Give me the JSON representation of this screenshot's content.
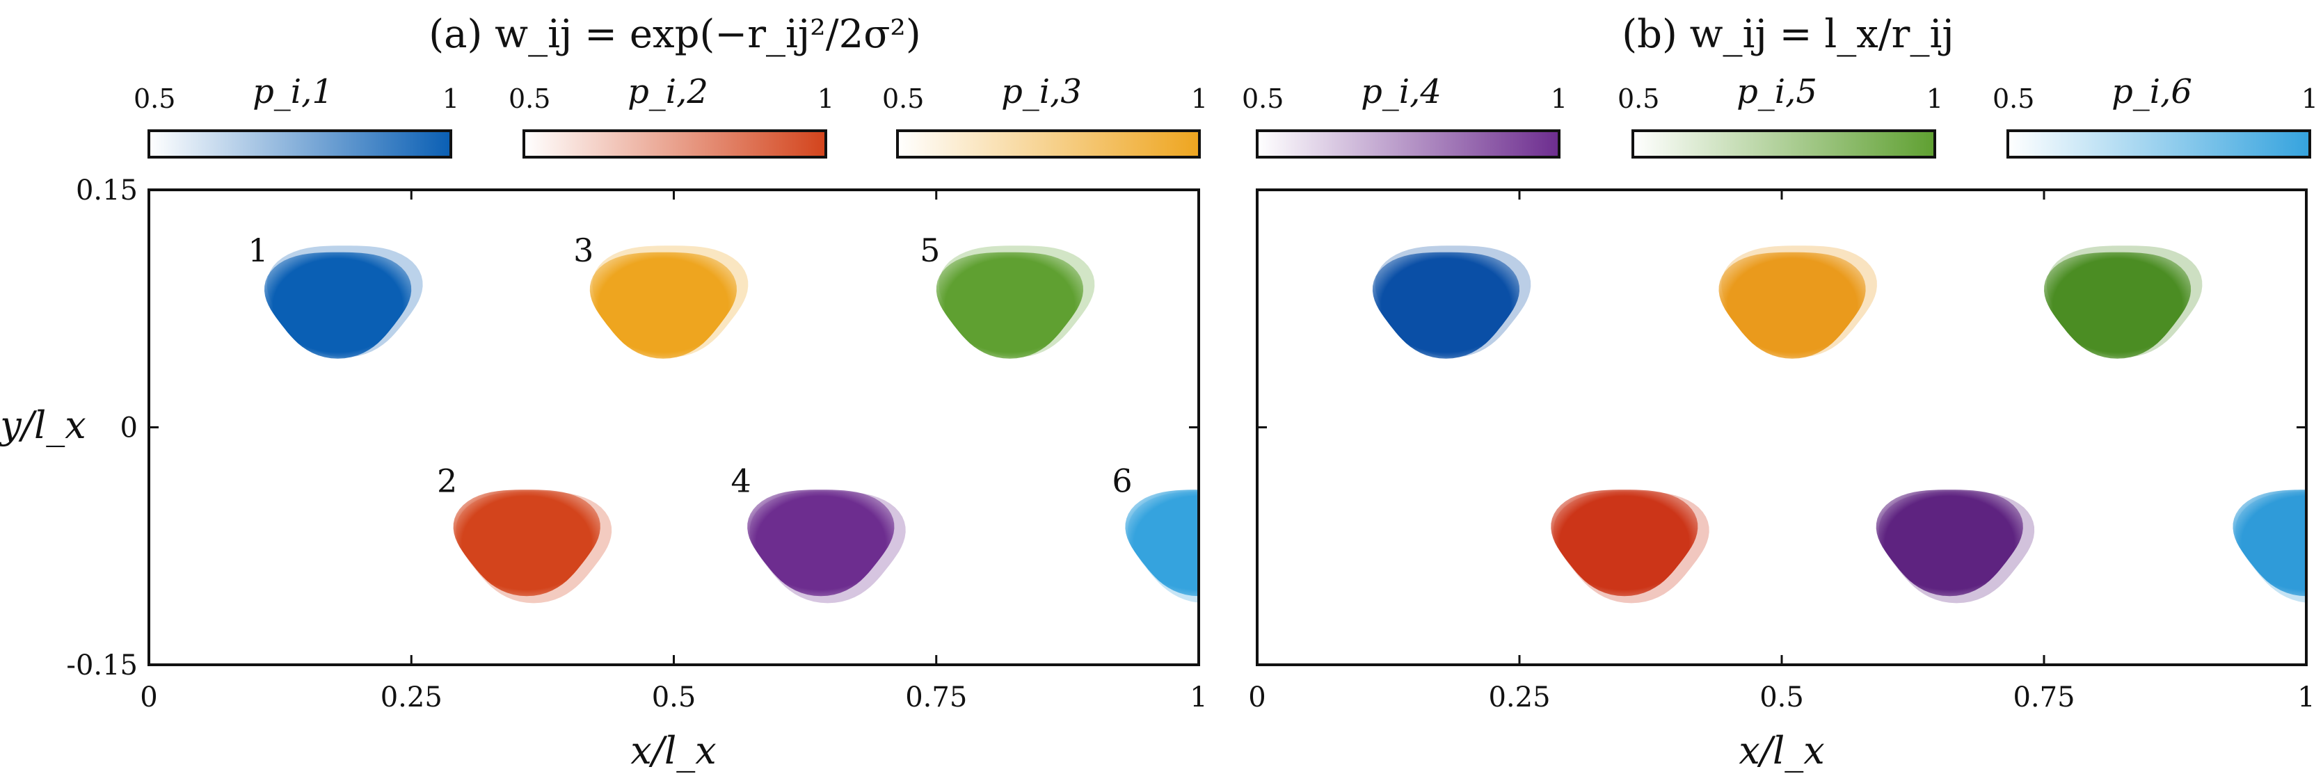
{
  "chart_data": [
    {
      "type": "heatmap",
      "title": "(a) w_ij = exp(−r_ij²/2σ²)",
      "xlabel": "x/l_x",
      "ylabel": "y/l_x",
      "xlim": [
        0,
        1
      ],
      "ylim": [
        -0.15,
        0.15
      ],
      "xticks": [
        "0",
        "0.25",
        "0.5",
        "0.75",
        "1"
      ],
      "yticks": [
        "0.15",
        "0",
        "-0.15"
      ],
      "regions": [
        {
          "id": "1",
          "label": "1",
          "cx": 0.18,
          "cy": 0.08,
          "color": "#0a5fb4"
        },
        {
          "id": "2",
          "label": "2",
          "cx": 0.36,
          "cy": -0.07,
          "color": "#d3441c"
        },
        {
          "id": "3",
          "label": "3",
          "cx": 0.49,
          "cy": 0.08,
          "color": "#eea51f"
        },
        {
          "id": "4",
          "label": "4",
          "cx": 0.64,
          "cy": -0.07,
          "color": "#6d2d8f"
        },
        {
          "id": "5",
          "label": "5",
          "cx": 0.82,
          "cy": 0.08,
          "color": "#5fa031"
        },
        {
          "id": "6",
          "label": "6",
          "cx": 1.0,
          "cy": -0.07,
          "color": "#35a3de"
        }
      ]
    },
    {
      "type": "heatmap",
      "title": "(b) w_ij = l_x/r_ij",
      "xlabel": "x/l_x",
      "xlim": [
        0,
        1
      ],
      "ylim": [
        -0.15,
        0.15
      ],
      "xticks": [
        "0",
        "0.25",
        "0.5",
        "0.75",
        "1"
      ],
      "regions": [
        {
          "id": "1",
          "cx": 0.18,
          "cy": 0.08,
          "color": "#0a4fa6"
        },
        {
          "id": "2",
          "cx": 0.35,
          "cy": -0.07,
          "color": "#cc3518"
        },
        {
          "id": "3",
          "cx": 0.51,
          "cy": 0.08,
          "color": "#ea9a1c"
        },
        {
          "id": "4",
          "cx": 0.66,
          "cy": -0.07,
          "color": "#5e2380"
        },
        {
          "id": "5",
          "cx": 0.82,
          "cy": 0.08,
          "color": "#4b8d23"
        },
        {
          "id": "6",
          "cx": 1.0,
          "cy": -0.07,
          "color": "#2f9bd9"
        }
      ]
    }
  ],
  "colorbars": [
    {
      "label": "p_i,1",
      "min": "0.5",
      "max": "1",
      "color": "#0a5fb4"
    },
    {
      "label": "p_i,2",
      "min": "0.5",
      "max": "1",
      "color": "#d3441c"
    },
    {
      "label": "p_i,3",
      "min": "0.5",
      "max": "1",
      "color": "#eea51f"
    },
    {
      "label": "p_i,4",
      "min": "0.5",
      "max": "1",
      "color": "#6d2d8f"
    },
    {
      "label": "p_i,5",
      "min": "0.5",
      "max": "1",
      "color": "#5fa031"
    },
    {
      "label": "p_i,6",
      "min": "0.5",
      "max": "1",
      "color": "#35a3de"
    }
  ]
}
